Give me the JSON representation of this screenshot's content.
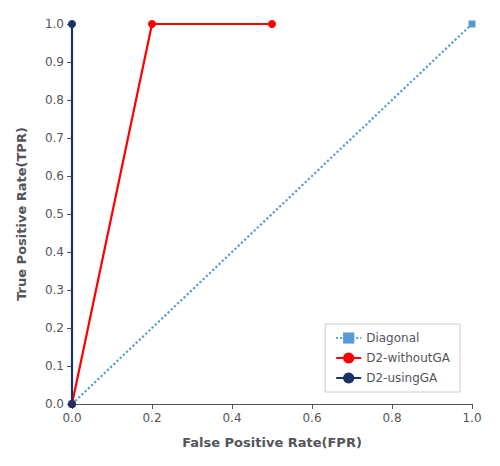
{
  "chart_data": {
    "type": "line",
    "xlabel": "False Positive Rate(FPR)",
    "ylabel": "True Positive Rate(TPR)",
    "xlim": [
      0,
      1
    ],
    "ylim": [
      0,
      1
    ],
    "xticks": [
      {
        "value": 0,
        "label": "0.0"
      },
      0.2,
      0.4,
      0.6,
      0.8,
      {
        "value": 1.0,
        "label": "1.0"
      }
    ],
    "yticks": [
      {
        "value": 0,
        "label": "0.0"
      },
      0.1,
      0.2,
      0.3,
      0.4,
      0.5,
      0.6,
      0.7,
      0.8,
      0.9,
      {
        "value": 1.0,
        "label": "1.0"
      }
    ],
    "grid": false,
    "legend": "lower right",
    "series": [
      {
        "name": "Diagonal",
        "color": "#5b9bd5",
        "x": [
          0,
          1
        ],
        "values": [
          0,
          1
        ],
        "marker": "square",
        "line_style": "dotted"
      },
      {
        "name": "D2-withoutGA",
        "color": "#FF0000",
        "x": [
          0,
          0.2,
          0.5
        ],
        "values": [
          0,
          1.0,
          1.0
        ],
        "marker": "circle",
        "line_style": "solid"
      },
      {
        "name": "D2-usingGA",
        "color": "#1a3364",
        "x": [
          0,
          0
        ],
        "values": [
          0,
          1.0
        ],
        "marker": "circle",
        "line_style": "solid"
      }
    ]
  }
}
